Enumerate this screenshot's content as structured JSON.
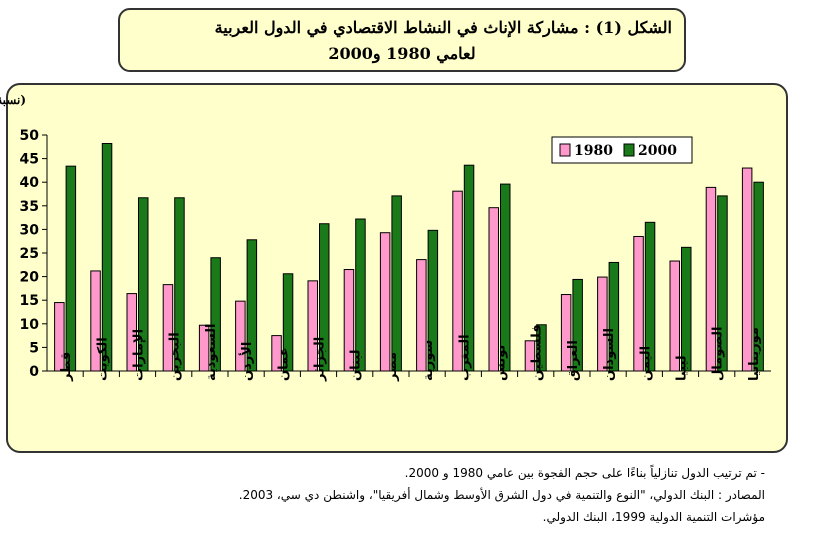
{
  "title": {
    "line1": "الشكل (1) : مشاركة الإناث في النشاط الاقتصادي في الدول العربية",
    "line2": "لعامي 1980 و2000"
  },
  "colors": {
    "s1980": "#ff99cc",
    "s2000": "#1a7a1a",
    "panel": "#ffffcc",
    "border": "#000000"
  },
  "notes": [
    "- تم ترتيب الدول تنازلياً بناءًا على حجم الفجوة بين عامي 1980 و 2000.",
    "المصادر : البنك الدولي، \"النوع والتنمية في دول الشرق الأوسط وشمال أفريقيا\"، واشنطن دي سي، 2003.",
    "مؤشرات التنمية الدولية 1999، البنك الدولي."
  ],
  "chart_data": {
    "type": "bar",
    "ylabel": "(نسبة مئوية)",
    "ylim": [
      0,
      50
    ],
    "yticks": [
      0,
      5,
      10,
      15,
      20,
      25,
      30,
      35,
      40,
      45,
      50
    ],
    "grid": false,
    "legend_position": "top-right",
    "categories": [
      "قطر",
      "الكويت",
      "الإمارات",
      "البحرين",
      "السعودية",
      "الأردن",
      "عمان",
      "الجزائر",
      "لبنان",
      "مصر",
      "سورية",
      "المغرب",
      "تونس",
      "فلسطين",
      "العراق",
      "السودان",
      "اليمن",
      "ليبيا",
      "الصومال",
      "موريتانيا"
    ],
    "series": [
      {
        "name": "1980",
        "values": [
          14.5,
          21.2,
          16.4,
          18.3,
          9.7,
          14.8,
          7.5,
          19.1,
          21.5,
          29.3,
          23.6,
          38.1,
          34.6,
          6.4,
          16.2,
          19.9,
          28.5,
          23.3,
          38.9,
          43.0
        ]
      },
      {
        "name": "2000",
        "values": [
          43.4,
          48.2,
          36.7,
          36.7,
          24.0,
          27.8,
          20.6,
          31.2,
          32.2,
          37.1,
          29.8,
          43.6,
          39.6,
          9.8,
          19.4,
          23.0,
          31.5,
          26.2,
          37.1,
          40.0
        ]
      }
    ]
  }
}
